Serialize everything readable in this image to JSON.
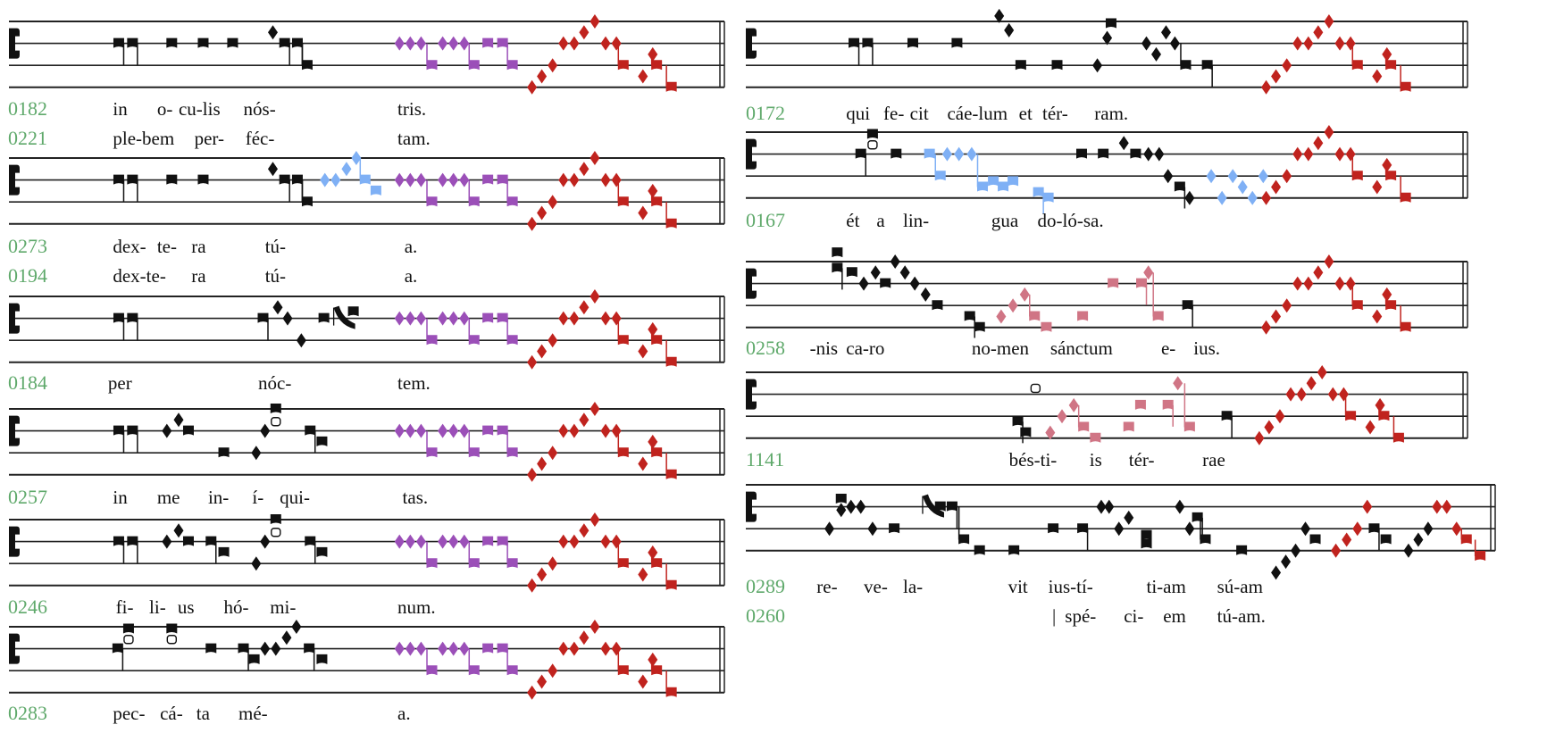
{
  "colors": {
    "label": "#5fa96b",
    "black": "#111111",
    "purple": "#9b4fb8",
    "red": "#c0231e",
    "blue": "#7fb0f5",
    "pink": "#d07585"
  },
  "left_column": [
    {
      "lines": [
        {
          "label": "0182",
          "syllables": [
            "in",
            "o-",
            "cu-lis",
            "nós-",
            "tris."
          ]
        },
        {
          "label": "0221",
          "syllables": [
            "ple-bem",
            "per-",
            "féc-",
            "tam."
          ]
        }
      ]
    },
    {
      "lines": [
        {
          "label": "0273",
          "syllables": [
            "dex-",
            "te-",
            "ra",
            "tú-",
            "a."
          ]
        },
        {
          "label": "0194",
          "syllables": [
            "dex-te-",
            "ra",
            "tú-",
            "a."
          ]
        }
      ]
    },
    {
      "lines": [
        {
          "label": "0184",
          "syllables": [
            "per",
            "nóc-",
            "tem."
          ]
        }
      ]
    },
    {
      "lines": [
        {
          "label": "0257",
          "syllables": [
            "in",
            "me",
            "in-",
            "í-",
            "qui-",
            "tas."
          ]
        }
      ]
    },
    {
      "lines": [
        {
          "label": "0246",
          "syllables": [
            "fi-",
            "li-",
            "us",
            "hó-",
            "mi-",
            "num."
          ]
        }
      ]
    },
    {
      "lines": [
        {
          "label": "0283",
          "syllables": [
            "pec-",
            "cá-",
            "ta",
            "mé-",
            "a."
          ]
        }
      ]
    }
  ],
  "right_column": [
    {
      "lines": [
        {
          "label": "0172",
          "syllables": [
            "qui",
            "fe-",
            "cit",
            "cáe-lum",
            "et",
            "tér-",
            "ram."
          ]
        }
      ]
    },
    {
      "lines": [
        {
          "label": "0167",
          "syllables": [
            "ét",
            "a",
            "lin-",
            "gua",
            "do-ló-sa."
          ]
        }
      ]
    },
    {
      "lines": [
        {
          "label": "0258",
          "syllables": [
            "-nis",
            "ca-ro",
            "no-men",
            "sánctum",
            "e-",
            "ius."
          ]
        }
      ]
    },
    {
      "lines": [
        {
          "label": "1141",
          "syllables": [
            "bés-ti-",
            "is",
            "tér-",
            "rae"
          ]
        }
      ]
    },
    {
      "lines": [
        {
          "label": "0289",
          "syllables": [
            "re-",
            "ve-",
            "la-",
            "vit",
            "ius-tí-",
            "ti-am",
            "sú-am"
          ]
        },
        {
          "label": "0260",
          "syllables": [
            "|",
            "spé-",
            "ci-",
            "em",
            "tú-am."
          ]
        }
      ]
    }
  ]
}
